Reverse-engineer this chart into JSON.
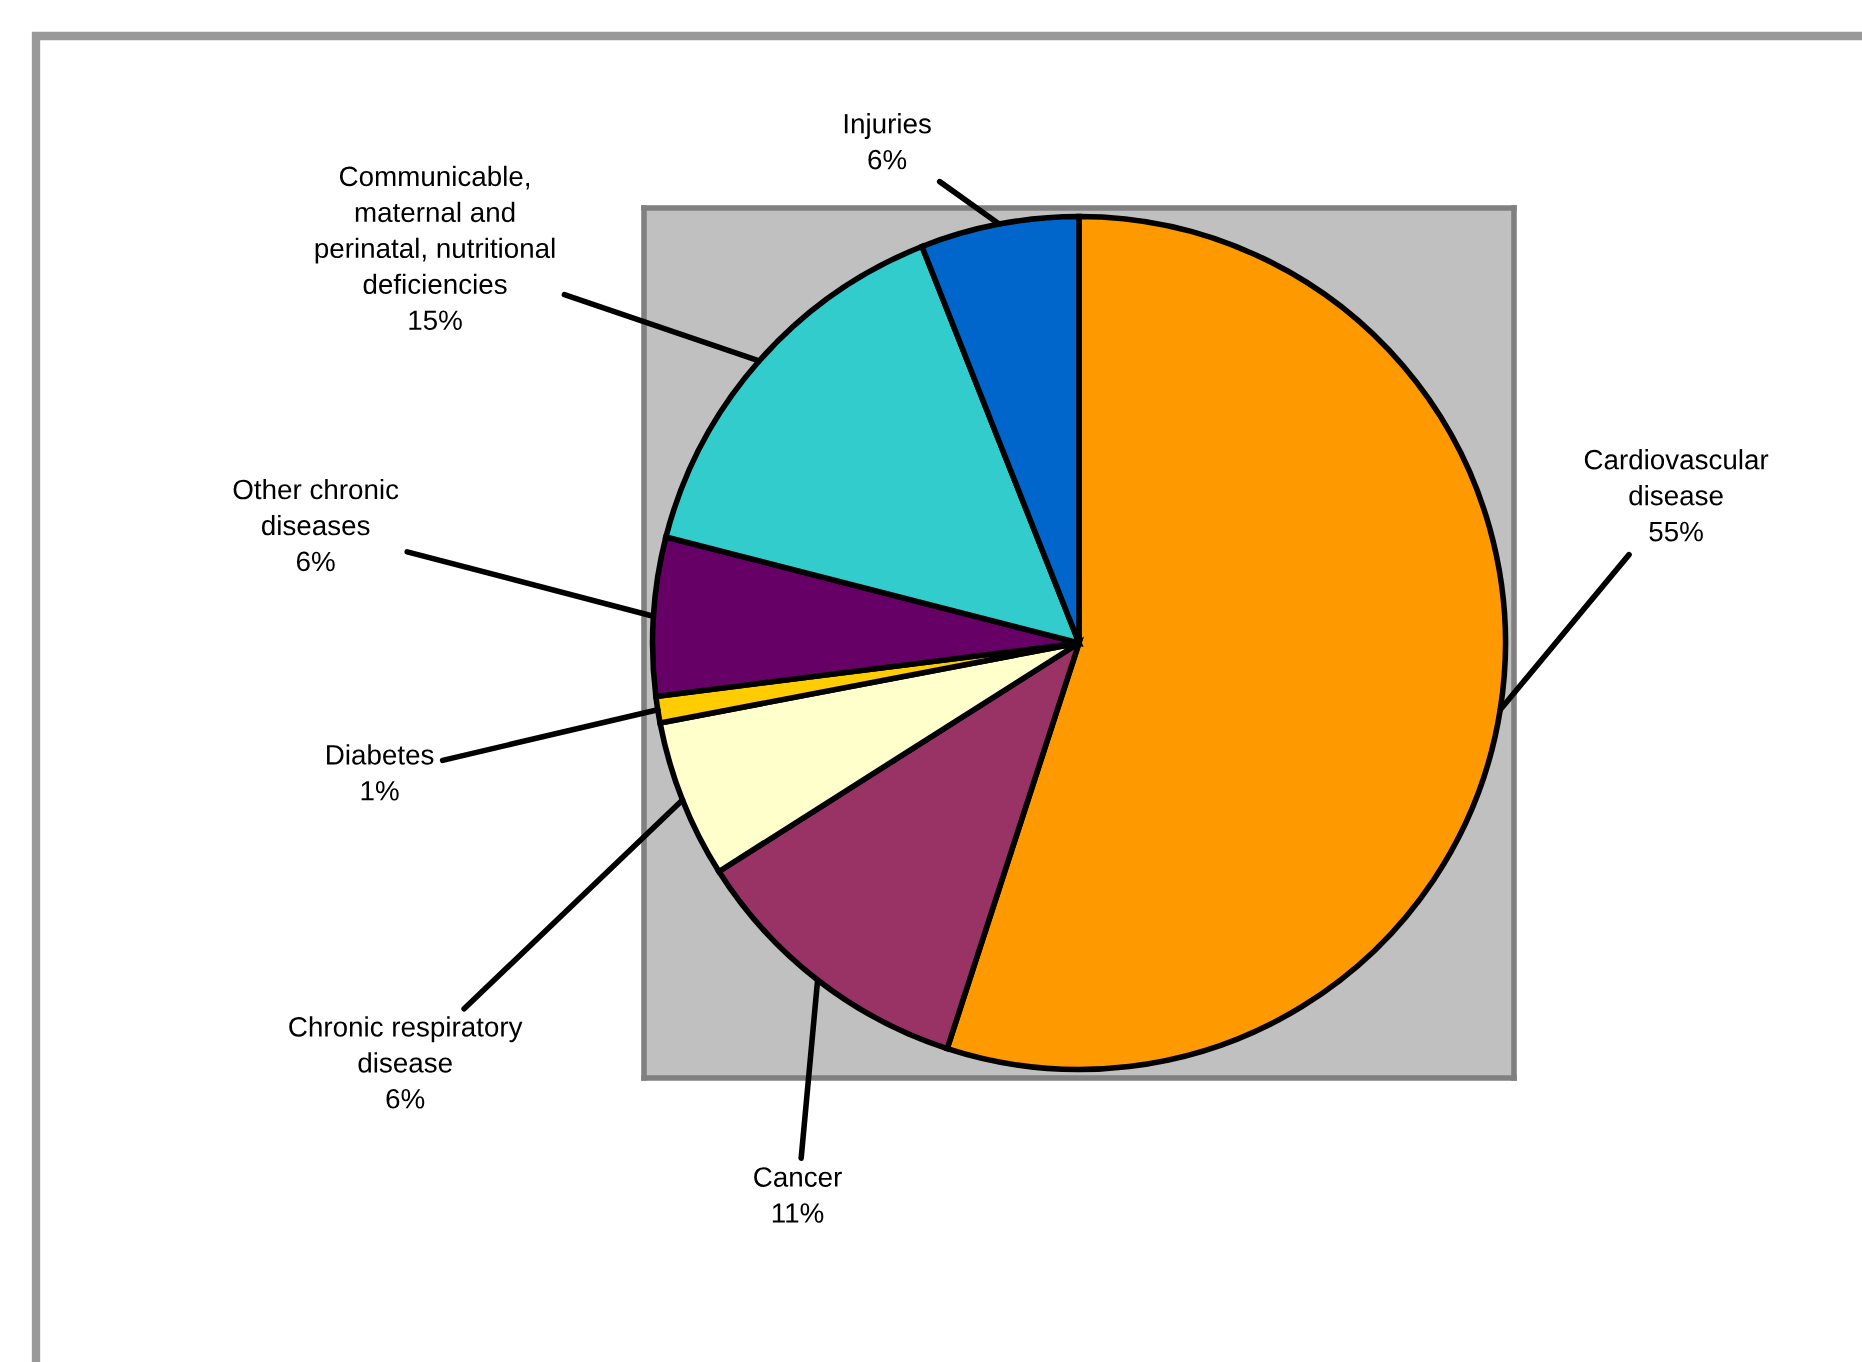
{
  "chart_data": {
    "type": "pie",
    "categories": [
      "Cardiovascular\ndisease",
      "Cancer",
      "Chronic respiratory\ndisease",
      "Diabetes",
      "Other chronic\ndiseases",
      "Communicable,\nmaternal and\nperinatal, nutritional\ndeficiencies",
      "Injuries"
    ],
    "values": [
      55,
      11,
      6,
      1,
      6,
      15,
      6
    ],
    "value_labels": [
      "55%",
      "11%",
      "6%",
      "1%",
      "6%",
      "15%",
      "6%"
    ],
    "colors": [
      "#ff9900",
      "#993366",
      "#ffffcc",
      "#ffcc00",
      "#660066",
      "#33cccc",
      "#0066cc"
    ],
    "legend": false
  }
}
